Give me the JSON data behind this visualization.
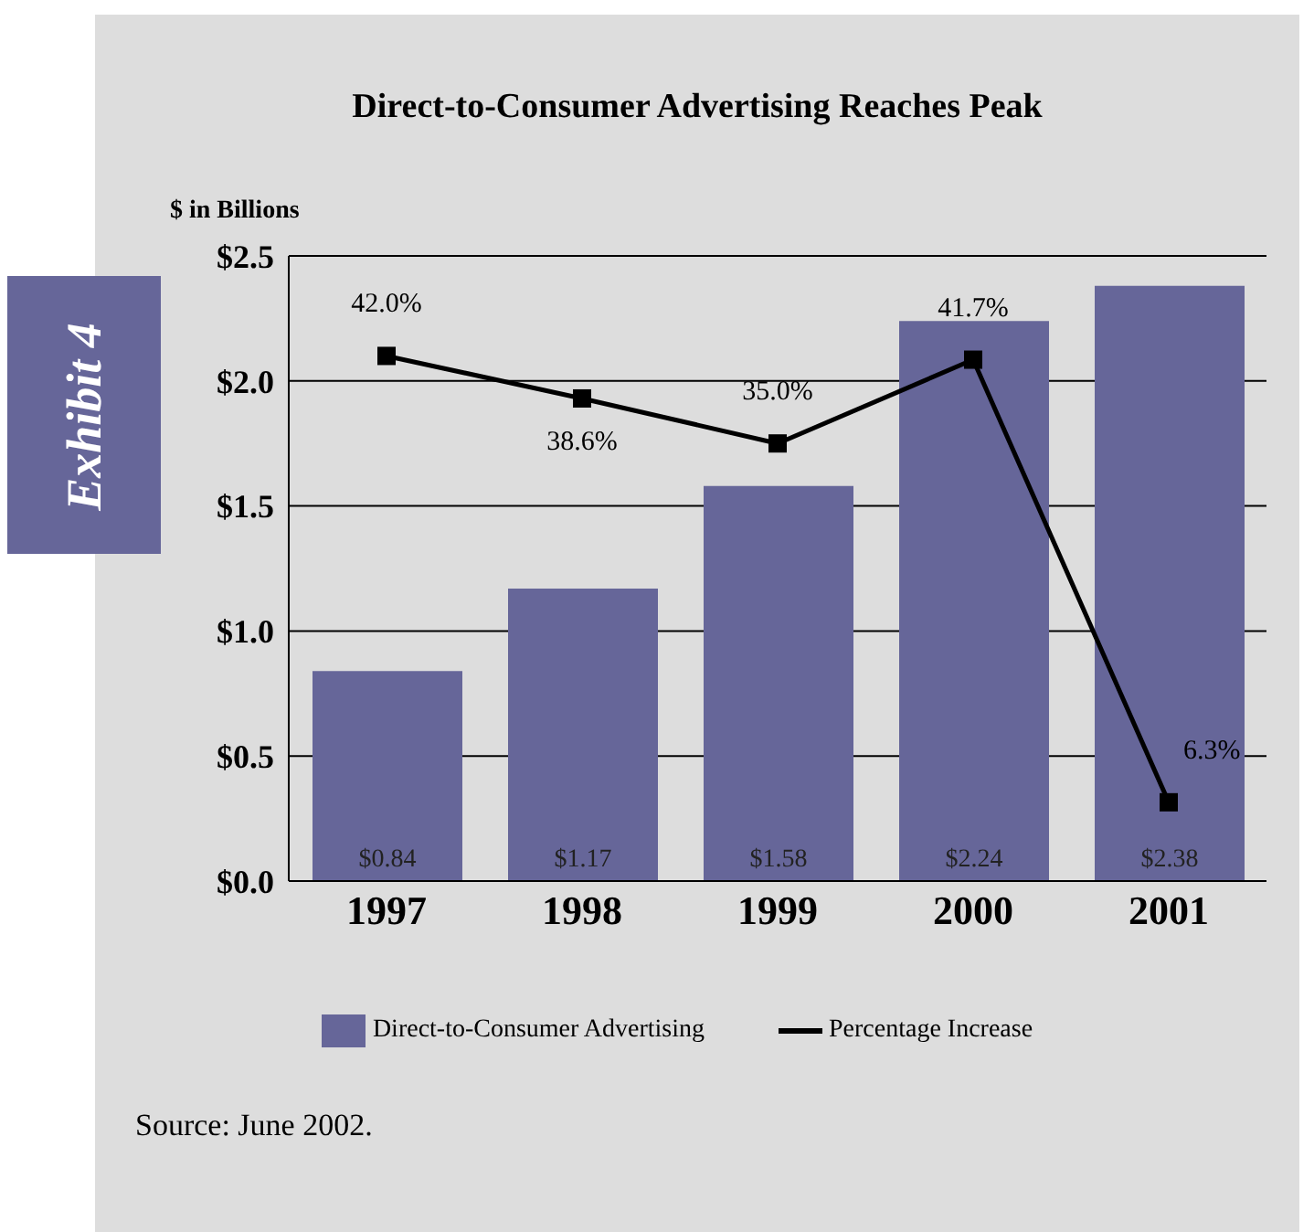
{
  "chart_data": {
    "type": "bar",
    "title": "Direct-to-Consumer Advertising Reaches Peak",
    "ylabel": "$ in Billions",
    "categories": [
      "1997",
      "1998",
      "1999",
      "2000",
      "2001"
    ],
    "series": [
      {
        "name": "Direct-to-Consumer Advertising",
        "color": "#666699",
        "values": [
          0.84,
          1.17,
          1.58,
          2.24,
          2.38
        ],
        "value_labels": [
          "$0.84",
          "$1.17",
          "$1.58",
          "$2.24",
          "$2.38"
        ]
      },
      {
        "name": "Percentage Increase",
        "type": "line",
        "axis": "y2",
        "color": "#000000",
        "values": [
          42.0,
          38.6,
          35.0,
          41.7,
          6.3
        ],
        "value_labels": [
          "42.0%",
          "38.6%",
          "35.0%",
          "41.7%",
          "6.3%"
        ]
      }
    ],
    "ylim": [
      0,
      2.5
    ],
    "yticks": [
      {
        "value": 0,
        "label": "$0.0"
      },
      {
        "value": 0.5,
        "label": "$0.5"
      },
      {
        "value": 1,
        "label": "$1.0"
      },
      {
        "value": 1.5,
        "label": "$1.5"
      },
      {
        "value": 2,
        "label": "$2.0"
      },
      {
        "value": 2.5,
        "label": "$2.5"
      }
    ],
    "y2lim": [
      0,
      50
    ],
    "grid": "y",
    "legend": "bottom",
    "marker": "square",
    "line_style": "solid",
    "annotations": [
      "Exhibit 4",
      "Source: June 2002."
    ]
  }
}
